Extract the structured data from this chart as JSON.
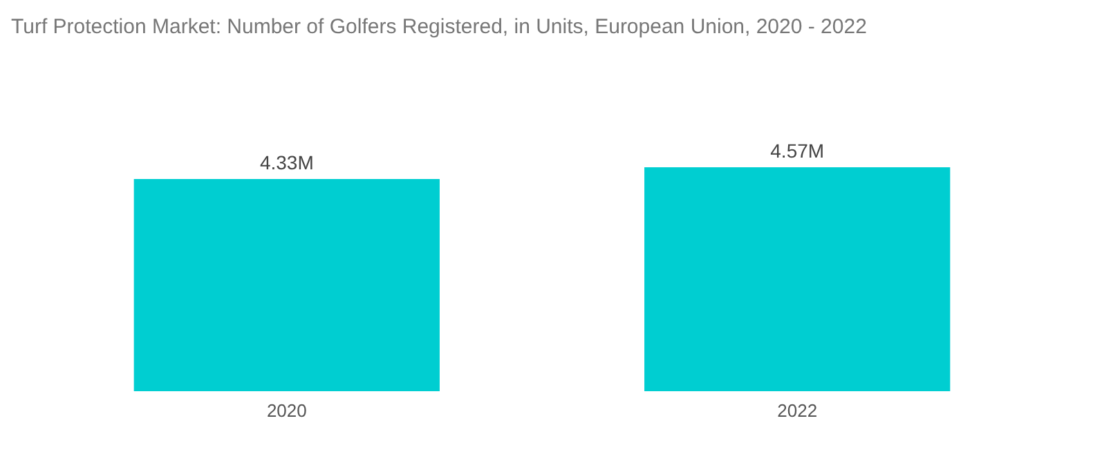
{
  "chart_data": {
    "type": "bar",
    "title": "Turf Protection Market:  Number of Golfers Registered,  in Units, European Union, 2020 - 2022",
    "categories": [
      "2020",
      "2022"
    ],
    "values": [
      4.33,
      4.57
    ],
    "value_labels": [
      "4.33M",
      "4.57M"
    ],
    "color": "#00ced1",
    "grid": false
  }
}
